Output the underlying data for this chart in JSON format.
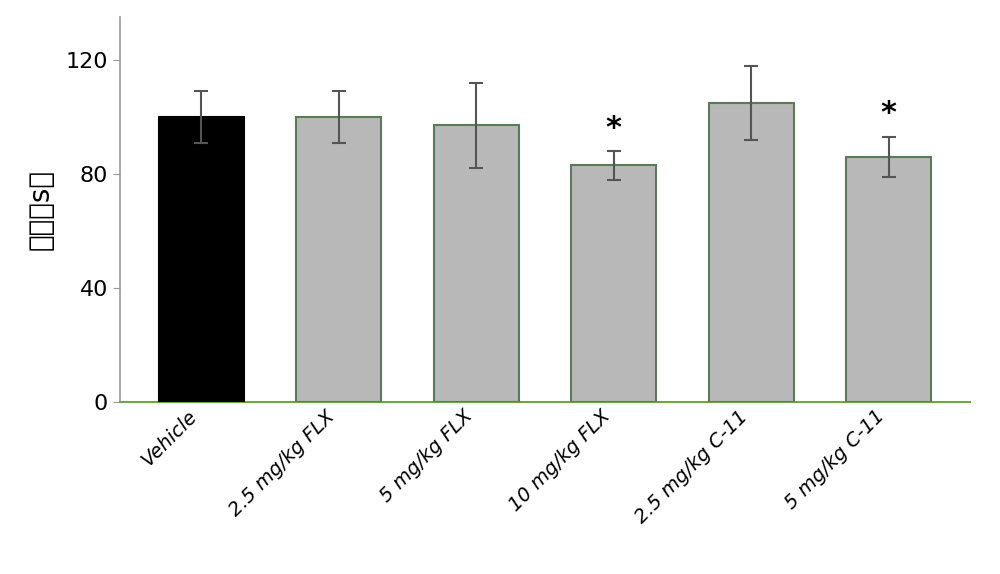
{
  "categories": [
    "Vehicle",
    "2.5 mg/kg FLX",
    "5 mg/kg FLX",
    "10 mg/kg FLX",
    "2.5 mg/kg C-11",
    "5 mg/kg C-11"
  ],
  "values": [
    100,
    100,
    97,
    83,
    105,
    86
  ],
  "errors": [
    9,
    9,
    15,
    5,
    13,
    7
  ],
  "bar_colors": [
    "#000000",
    "#b8b8b8",
    "#b8b8b8",
    "#b8b8b8",
    "#b8b8b8",
    "#b8b8b8"
  ],
  "bar_edgecolors": [
    "#000000",
    "#5a7a5a",
    "#5a7a5a",
    "#5a7a5a",
    "#5a7a5a",
    "#5a7a5a"
  ],
  "significant": [
    false,
    false,
    false,
    true,
    false,
    true
  ],
  "ylabel": "静止（s）",
  "ylim": [
    0,
    135
  ],
  "yticks": [
    0,
    40,
    80,
    120
  ],
  "bar_width": 0.62,
  "capsize": 5,
  "error_color": "#555555",
  "asterisk_fontsize": 22,
  "ylabel_fontsize": 20,
  "tick_fontsize": 16,
  "xtick_fontsize": 14,
  "background_color": "#ffffff",
  "spine_color": "#999999",
  "bottom_spine_color": "#6aaa44"
}
